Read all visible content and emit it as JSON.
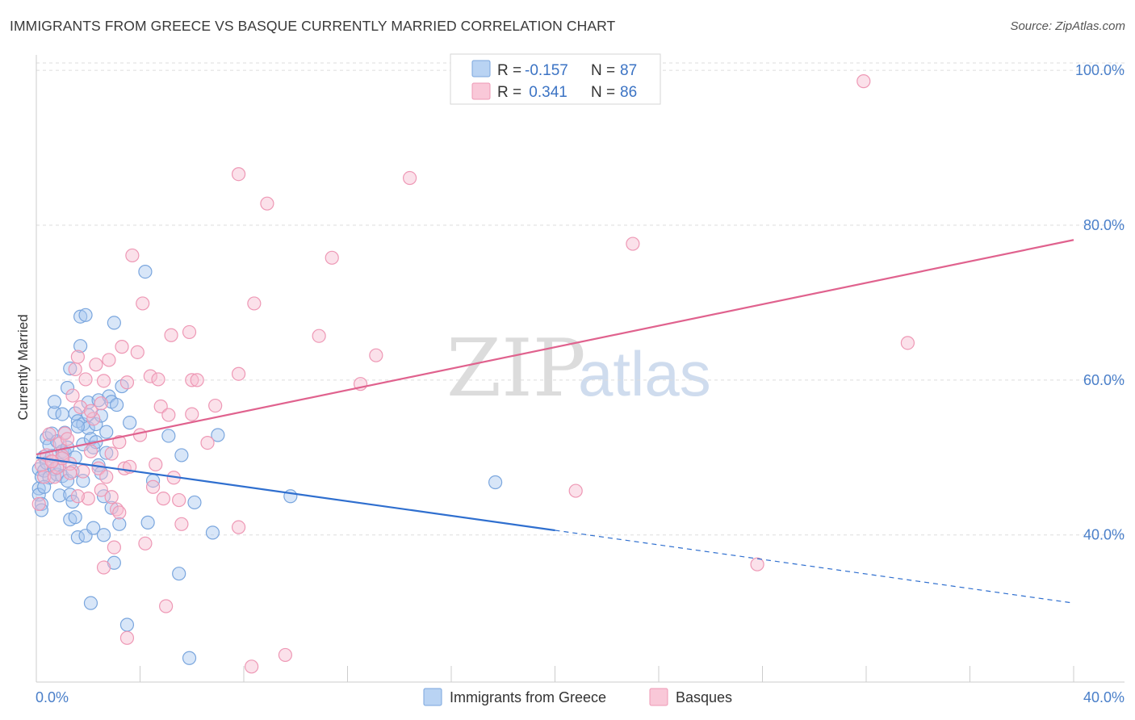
{
  "header": {
    "title": "IMMIGRANTS FROM GREECE VS BASQUE CURRENTLY MARRIED CORRELATION CHART",
    "source": "Source: ZipAtlas.com"
  },
  "legend": {
    "rows": [
      {
        "r_label": "R =",
        "r_value": "-0.157",
        "n_label": "N =",
        "n_value": "87"
      },
      {
        "r_label": "R =",
        "r_value": " 0.341",
        "n_label": "N =",
        "n_value": "86"
      }
    ]
  },
  "watermark": {
    "zip": "ZIP",
    "atlas": "atlas"
  },
  "colors": {
    "greece_fill": "#a9c8f0",
    "greece_stroke": "#7aa6de",
    "greece_line": "#2f6fcf",
    "basque_fill": "#f7bcd0",
    "basque_stroke": "#ee98b5",
    "basque_line": "#e0628e",
    "axis_text": "#4a7fc9",
    "grid": "#dddddd"
  },
  "chart_data": {
    "type": "scatter",
    "title": "IMMIGRANTS FROM GREECE VS BASQUE CURRENTLY MARRIED CORRELATION CHART",
    "xlabel": "",
    "ylabel": "Currently Married",
    "xlim": [
      0,
      40
    ],
    "ylim": [
      21,
      102
    ],
    "x_tick_labels": [
      "0.0%",
      "40.0%"
    ],
    "y_ticks": [
      40,
      60,
      80,
      100
    ],
    "y_tick_labels": [
      "40.0%",
      "60.0%",
      "80.0%",
      "100.0%"
    ],
    "grid": "horizontal dashed",
    "legend_position": "top-center",
    "series": [
      {
        "name": "Immigrants from Greece",
        "color": "#a9c8f0",
        "r": -0.157,
        "n": 87,
        "trend": {
          "x0": 0,
          "y0": 50.0,
          "x1": 20.0,
          "y1": 40.6,
          "dashed_to_x": 40,
          "dashed_to_y": 31.2
        },
        "points": [
          [
            0.1,
            48.5
          ],
          [
            0.1,
            46.0
          ],
          [
            0.1,
            45.2
          ],
          [
            0.2,
            44.0
          ],
          [
            0.2,
            43.2
          ],
          [
            0.2,
            47.5
          ],
          [
            0.3,
            48.3
          ],
          [
            0.3,
            50.1
          ],
          [
            0.4,
            52.5
          ],
          [
            0.4,
            49.3
          ],
          [
            0.5,
            47.4
          ],
          [
            0.5,
            51.6
          ],
          [
            0.6,
            53.1
          ],
          [
            0.6,
            50.2
          ],
          [
            0.7,
            55.8
          ],
          [
            0.7,
            57.2
          ],
          [
            0.7,
            48.5
          ],
          [
            0.8,
            47.8
          ],
          [
            0.8,
            52.1
          ],
          [
            0.9,
            49.0
          ],
          [
            0.9,
            45.1
          ],
          [
            1.0,
            55.6
          ],
          [
            1.0,
            50.8
          ],
          [
            1.0,
            47.6
          ],
          [
            1.1,
            53.2
          ],
          [
            1.1,
            50.6
          ],
          [
            1.2,
            51.3
          ],
          [
            1.2,
            47.0
          ],
          [
            1.2,
            59.0
          ],
          [
            1.3,
            61.5
          ],
          [
            1.3,
            45.2
          ],
          [
            1.3,
            42.0
          ],
          [
            1.4,
            44.3
          ],
          [
            1.4,
            48.2
          ],
          [
            1.5,
            42.3
          ],
          [
            1.5,
            50.0
          ],
          [
            1.5,
            55.7
          ],
          [
            1.6,
            54.7
          ],
          [
            1.6,
            39.7
          ],
          [
            1.7,
            64.4
          ],
          [
            1.7,
            68.2
          ],
          [
            1.8,
            51.7
          ],
          [
            1.8,
            47.0
          ],
          [
            1.8,
            54.3
          ],
          [
            1.9,
            39.9
          ],
          [
            1.9,
            68.4
          ],
          [
            2.0,
            57.1
          ],
          [
            2.0,
            53.8
          ],
          [
            2.0,
            55.5
          ],
          [
            2.1,
            52.4
          ],
          [
            2.1,
            31.2
          ],
          [
            2.2,
            40.9
          ],
          [
            2.2,
            51.3
          ],
          [
            2.3,
            54.3
          ],
          [
            2.3,
            52.0
          ],
          [
            2.4,
            57.4
          ],
          [
            2.4,
            49.0
          ],
          [
            2.5,
            55.4
          ],
          [
            2.5,
            48.0
          ],
          [
            2.6,
            45.0
          ],
          [
            2.6,
            40.0
          ],
          [
            2.7,
            50.6
          ],
          [
            2.7,
            53.3
          ],
          [
            2.8,
            57.9
          ],
          [
            2.9,
            57.2
          ],
          [
            2.9,
            43.5
          ],
          [
            3.0,
            36.4
          ],
          [
            3.0,
            67.4
          ],
          [
            3.1,
            56.8
          ],
          [
            3.2,
            41.4
          ],
          [
            3.3,
            59.2
          ],
          [
            3.5,
            28.4
          ],
          [
            3.6,
            54.5
          ],
          [
            4.2,
            74.0
          ],
          [
            4.3,
            41.6
          ],
          [
            4.5,
            47.0
          ],
          [
            5.1,
            52.8
          ],
          [
            5.5,
            35.0
          ],
          [
            5.6,
            50.3
          ],
          [
            5.9,
            24.1
          ],
          [
            6.1,
            44.2
          ],
          [
            6.8,
            40.3
          ],
          [
            7.0,
            52.9
          ],
          [
            9.8,
            45.0
          ],
          [
            17.7,
            46.8
          ],
          [
            0.3,
            46.2
          ],
          [
            1.6,
            54.0
          ]
        ]
      },
      {
        "name": "Basques",
        "color": "#f7bcd0",
        "r": 0.341,
        "n": 86,
        "trend": {
          "x0": 0,
          "y0": 50.4,
          "x1": 40,
          "y1": 78.1
        },
        "points": [
          [
            0.1,
            44.0
          ],
          [
            0.2,
            49.0
          ],
          [
            0.3,
            47.5
          ],
          [
            0.4,
            50.3
          ],
          [
            0.5,
            53.0
          ],
          [
            0.6,
            49.5
          ],
          [
            0.7,
            47.5
          ],
          [
            0.8,
            48.7
          ],
          [
            0.9,
            51.8
          ],
          [
            1.0,
            50.2
          ],
          [
            1.1,
            53.1
          ],
          [
            1.2,
            52.4
          ],
          [
            1.3,
            49.2
          ],
          [
            1.4,
            58.0
          ],
          [
            1.5,
            61.4
          ],
          [
            1.6,
            63.0
          ],
          [
            1.7,
            56.5
          ],
          [
            1.8,
            48.2
          ],
          [
            1.9,
            60.1
          ],
          [
            2.0,
            44.7
          ],
          [
            2.1,
            50.8
          ],
          [
            2.2,
            55.0
          ],
          [
            2.3,
            62.0
          ],
          [
            2.4,
            48.6
          ],
          [
            2.5,
            45.8
          ],
          [
            2.5,
            57.0
          ],
          [
            2.6,
            59.9
          ],
          [
            2.6,
            35.8
          ],
          [
            2.7,
            47.5
          ],
          [
            2.8,
            62.6
          ],
          [
            2.9,
            44.9
          ],
          [
            3.0,
            38.4
          ],
          [
            3.1,
            43.3
          ],
          [
            3.2,
            42.9
          ],
          [
            3.2,
            52.0
          ],
          [
            3.3,
            64.3
          ],
          [
            3.4,
            48.6
          ],
          [
            3.5,
            26.7
          ],
          [
            3.5,
            59.7
          ],
          [
            3.7,
            76.1
          ],
          [
            3.9,
            63.6
          ],
          [
            4.0,
            52.9
          ],
          [
            4.1,
            69.9
          ],
          [
            4.2,
            38.9
          ],
          [
            4.4,
            60.5
          ],
          [
            4.5,
            46.2
          ],
          [
            4.6,
            49.1
          ],
          [
            4.7,
            60.1
          ],
          [
            4.8,
            56.6
          ],
          [
            4.9,
            44.7
          ],
          [
            5.0,
            30.8
          ],
          [
            5.1,
            55.5
          ],
          [
            5.2,
            65.8
          ],
          [
            5.3,
            47.4
          ],
          [
            5.5,
            44.5
          ],
          [
            5.6,
            41.4
          ],
          [
            5.9,
            66.2
          ],
          [
            6.0,
            55.6
          ],
          [
            6.0,
            60.0
          ],
          [
            6.2,
            60.0
          ],
          [
            6.6,
            51.9
          ],
          [
            6.9,
            56.7
          ],
          [
            7.8,
            86.6
          ],
          [
            7.8,
            60.8
          ],
          [
            7.8,
            41.0
          ],
          [
            8.3,
            23.0
          ],
          [
            8.4,
            69.9
          ],
          [
            8.9,
            82.8
          ],
          [
            9.6,
            24.5
          ],
          [
            10.9,
            65.7
          ],
          [
            11.4,
            75.8
          ],
          [
            12.5,
            59.5
          ],
          [
            13.1,
            63.2
          ],
          [
            14.4,
            86.1
          ],
          [
            20.8,
            45.7
          ],
          [
            23.0,
            77.6
          ],
          [
            27.8,
            36.2
          ],
          [
            31.9,
            98.6
          ],
          [
            33.6,
            64.8
          ],
          [
            1.0,
            49.9
          ],
          [
            1.6,
            45.0
          ],
          [
            2.1,
            56.0
          ],
          [
            0.6,
            49.5
          ],
          [
            1.3,
            48.0
          ],
          [
            2.9,
            50.5
          ],
          [
            3.6,
            48.8
          ]
        ]
      }
    ]
  },
  "bottom_legend": {
    "items": [
      {
        "label": "Immigrants from Greece"
      },
      {
        "label": "Basques"
      }
    ]
  }
}
